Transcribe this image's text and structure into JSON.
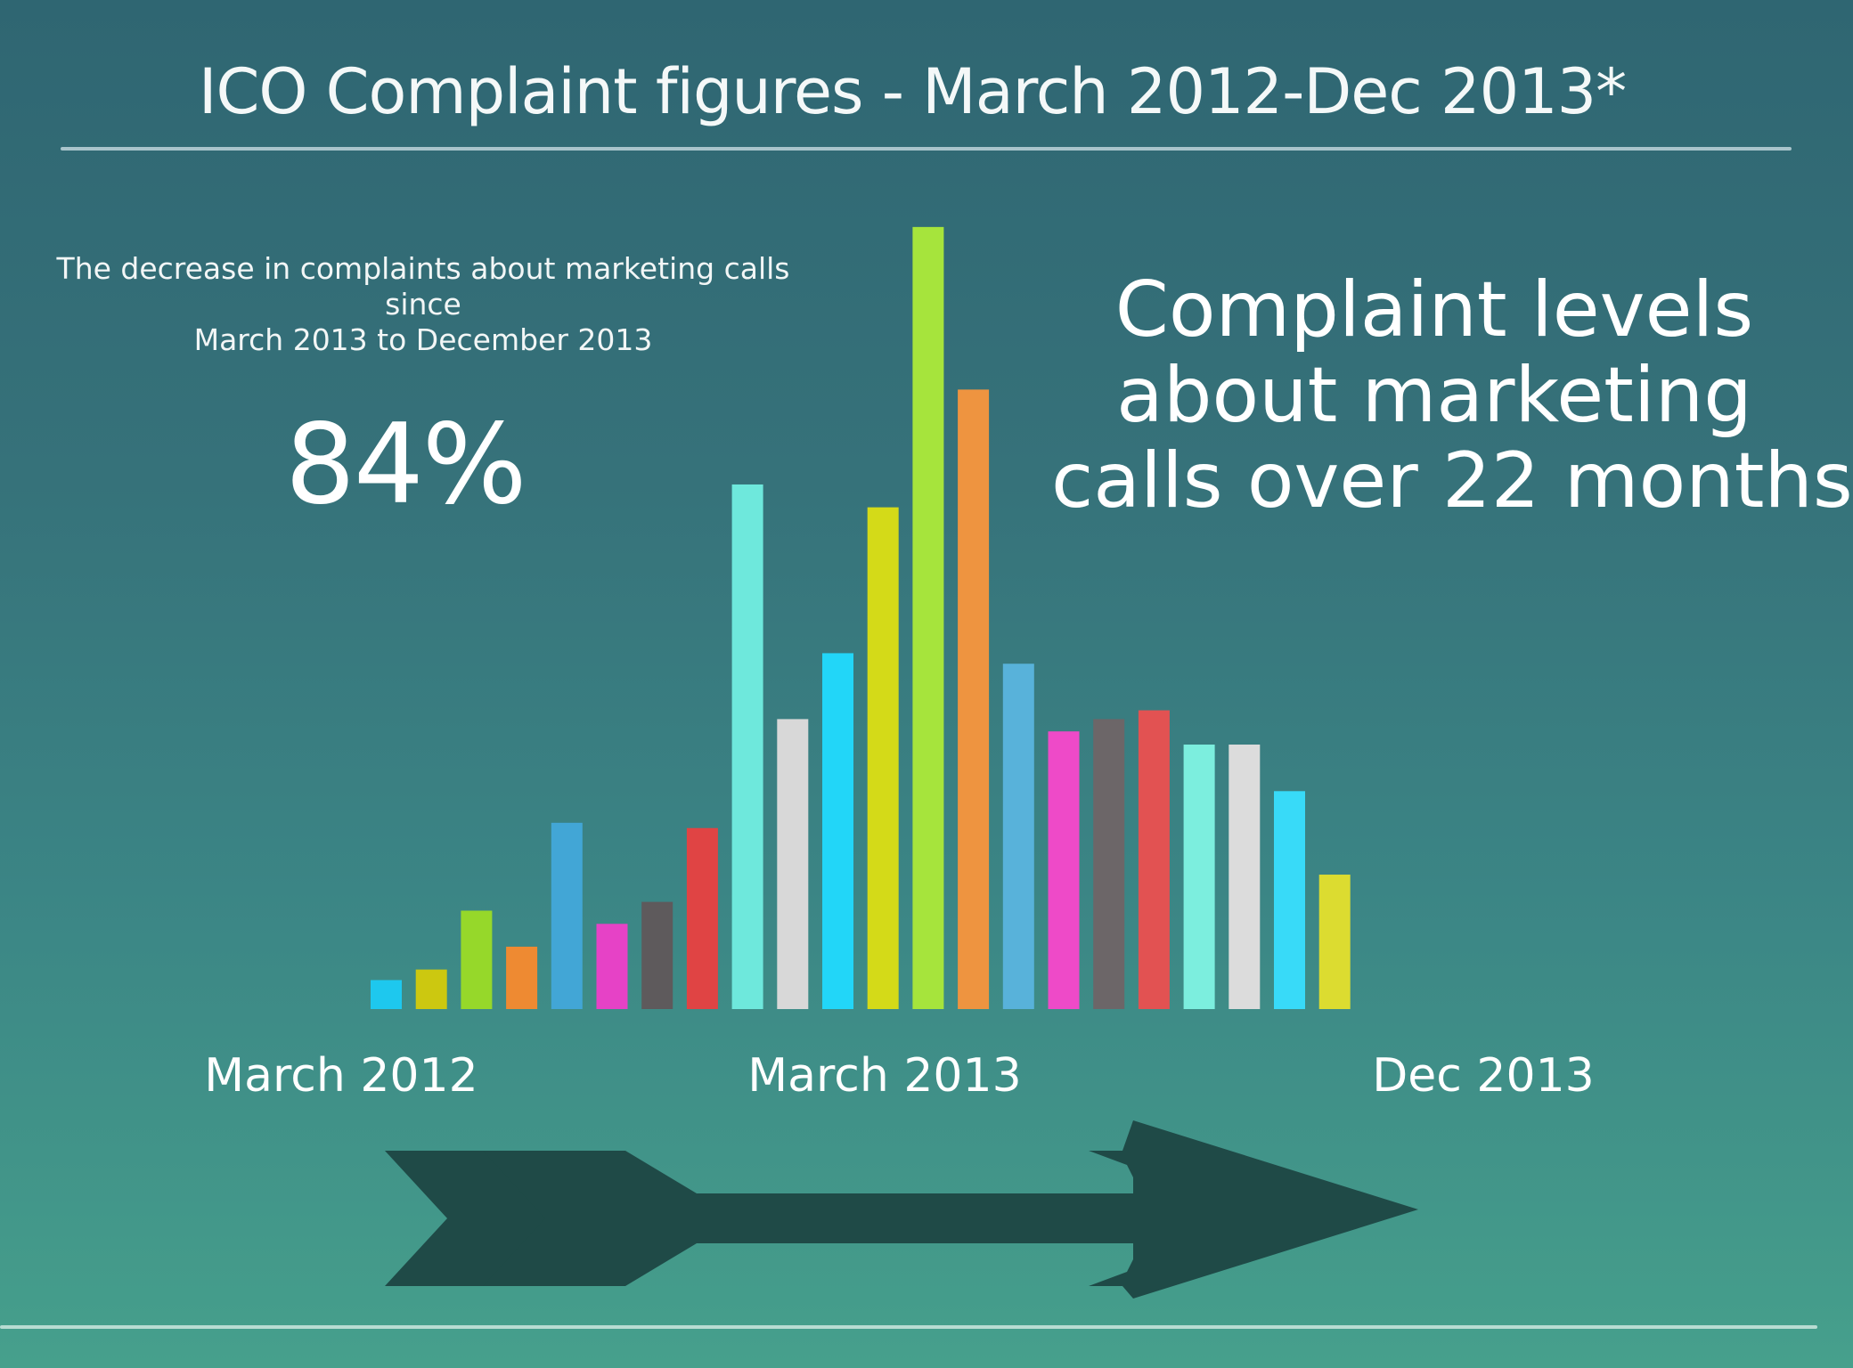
{
  "header": {
    "title": "ICO Complaint figures - March 2012-Dec 2013*"
  },
  "annotation": {
    "line1": "The decrease in complaints about marketing calls since",
    "line2": "March 2013 to December 2013",
    "value": "84%"
  },
  "headline": {
    "line1": "Complaint levels",
    "line2": "about marketing",
    "line3": "calls over 22 months"
  },
  "chart_data": {
    "type": "bar",
    "title": "ICO Complaint figures - March 2012-Dec 2013*",
    "xlabel": "",
    "ylabel": "",
    "grid": false,
    "legend": "none",
    "x_tick_labels": [
      "March 2012",
      "March 2013",
      "Dec 2013"
    ],
    "tick_positions": [
      1,
      13,
      22
    ],
    "values": [
      33,
      45,
      112,
      71,
      212,
      97,
      122,
      206,
      597,
      330,
      405,
      571,
      890,
      705,
      393,
      316,
      330,
      340,
      301,
      301,
      248,
      153
    ],
    "ylim": [
      0,
      900
    ],
    "colors": [
      "#1ec8ee",
      "#ccc810",
      "#96d82a",
      "#ee8a32",
      "#42a6d6",
      "#e642c6",
      "#5e5a5c",
      "#e04444",
      "#6ee8dc",
      "#d8d8d8",
      "#22d6f8",
      "#d4da18",
      "#a6e43c",
      "#ee9440",
      "#58b2da",
      "#ee4ac8",
      "#6c6668",
      "#e25252",
      "#7ceede",
      "#dcdcdc",
      "#38daf8",
      "#dcdc30"
    ]
  },
  "decoration": {
    "arrow_color": "#1f4a47"
  }
}
